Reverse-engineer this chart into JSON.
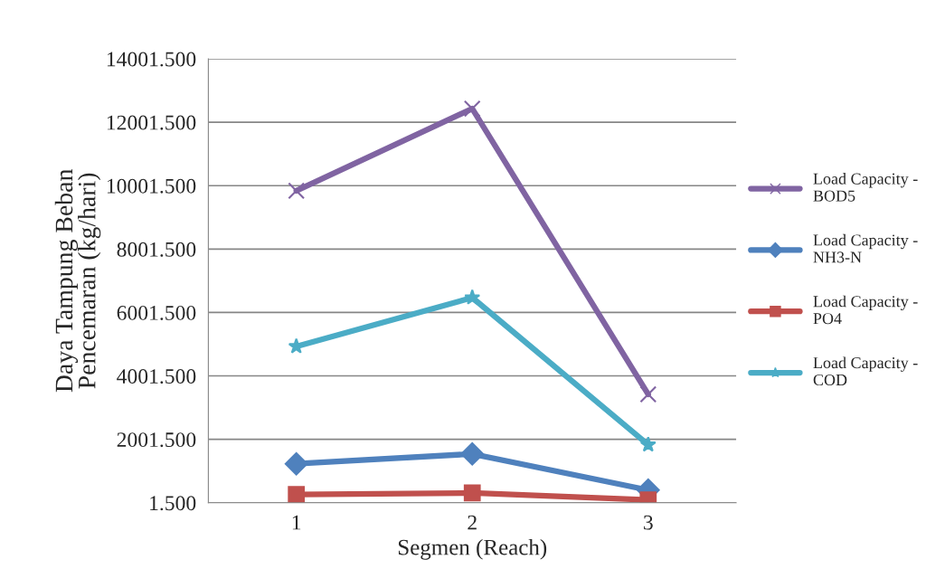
{
  "chart_data": {
    "type": "line",
    "xlabel": "Segmen (Reach)",
    "ylabel": "Daya Tampung Beban\nPencemaran (kg/hari)",
    "categories": [
      "1",
      "2",
      "3"
    ],
    "series": [
      {
        "name": "Load Capacity -\nBOD5",
        "color": "#8064a2",
        "marker": "cross",
        "values": [
          9840,
          12430,
          3420
        ]
      },
      {
        "name": "Load Capacity -\nNH3-N",
        "color": "#4f81bd",
        "marker": "diamond",
        "values": [
          1230,
          1540,
          400
        ]
      },
      {
        "name": "Load Capacity -\nPO4",
        "color": "#c0504d",
        "marker": "square",
        "values": [
          260,
          310,
          90
        ]
      },
      {
        "name": "Load Capacity -\nCOD",
        "color": "#4bacc6",
        "marker": "star",
        "values": [
          4930,
          6470,
          1830
        ]
      }
    ],
    "ylim": [
      1.5,
      14001.5
    ],
    "yticks": [
      {
        "value": 1.5,
        "label": "1.500"
      },
      {
        "value": 2001.5,
        "label": "2001.500"
      },
      {
        "value": 4001.5,
        "label": "4001.500"
      },
      {
        "value": 6001.5,
        "label": "6001.500"
      },
      {
        "value": 8001.5,
        "label": "8001.500"
      },
      {
        "value": 10001.5,
        "label": "10001.500"
      },
      {
        "value": 12001.5,
        "label": "12001.500"
      },
      {
        "value": 14001.5,
        "label": "14001.500"
      }
    ],
    "grid": "y",
    "legend": "right",
    "line_style": "solid"
  }
}
